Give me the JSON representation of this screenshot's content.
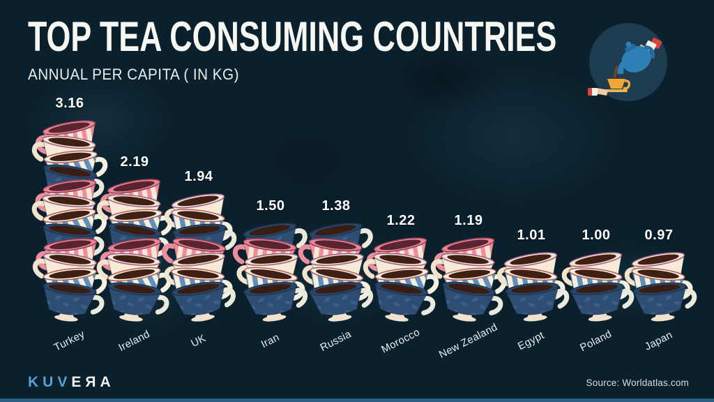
{
  "header": {
    "title": "TOP TEA CONSUMING COUNTRIES",
    "subtitle": "ANNUAL PER CAPITA ( IN KG)"
  },
  "badge_icon": "teapot-pouring-into-cup-icon",
  "chart_data": {
    "type": "bar",
    "title": "Top Tea Consuming Countries",
    "subtitle": "Annual per capita (in kg)",
    "unit": "kg",
    "categories": [
      "Turkey",
      "Ireland",
      "UK",
      "Iran",
      "Russia",
      "Morocco",
      "New Zealand",
      "Egypt",
      "Poland",
      "Japan"
    ],
    "values": [
      3.16,
      2.19,
      1.94,
      1.5,
      1.38,
      1.22,
      1.19,
      1.01,
      1.0,
      0.97
    ],
    "value_labels": [
      "3.16",
      "2.19",
      "1.94",
      "1.50",
      "1.38",
      "1.22",
      "1.19",
      "1.01",
      "1.00",
      "0.97"
    ],
    "cups_depicted": [
      12,
      8,
      7,
      5,
      5,
      4,
      4,
      3,
      3,
      3
    ],
    "legend": "none",
    "orientation": "vertical",
    "mark": "stacked teacup pictograms"
  },
  "footer": {
    "brand_blue": "KUV",
    "brand_white": "EЯA",
    "source": "Source: Worldatlas.com"
  },
  "colors": {
    "background": "#0a202c",
    "map_silhouette": "#1e3c4e",
    "title_text": "#f7f7f2",
    "value_text": "#ffffff",
    "cup_pink": "#ee8d9b",
    "cup_cream": "#f7ead6",
    "cup_blue_stripe": "#5f8fba",
    "cup_navy": "#2e4d72",
    "tea": "#45210f",
    "brand_blue": "#57a0d6",
    "bottom_bar": "#2b5f80",
    "badge_circle": "#1d3c50",
    "teapot_blue": "#2e7fb5",
    "teacup_yellow": "#f2a838",
    "cuff_red": "#d9453a"
  }
}
